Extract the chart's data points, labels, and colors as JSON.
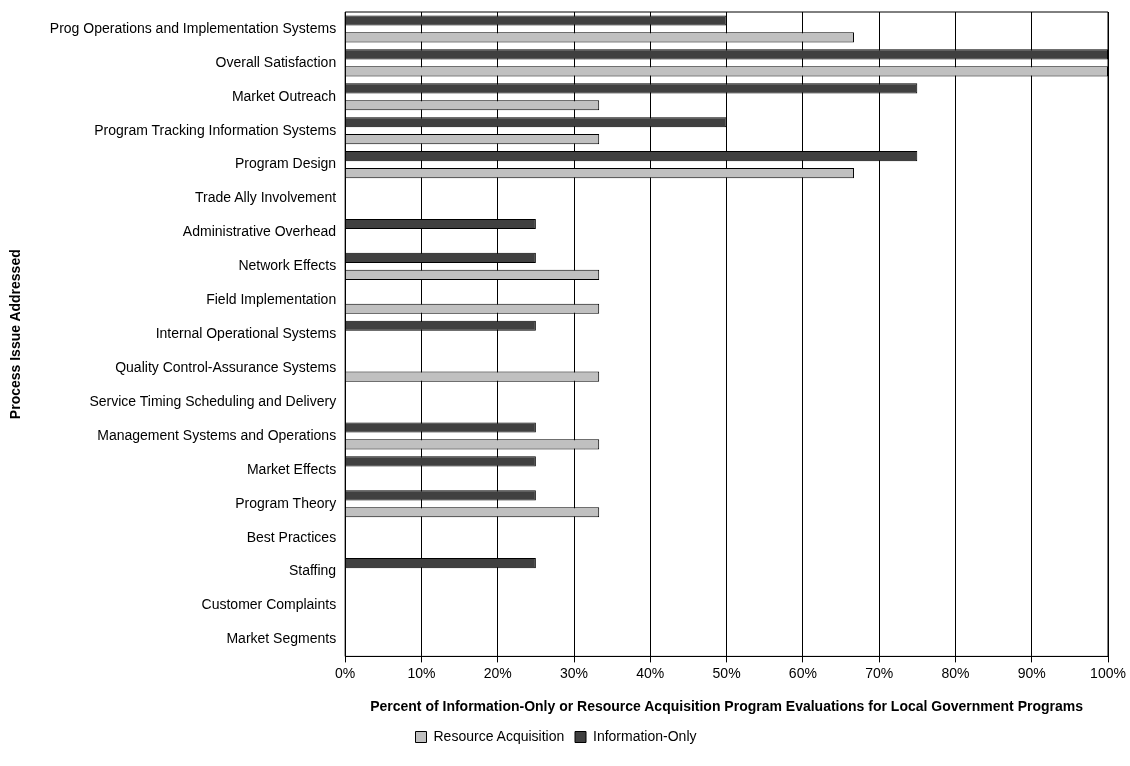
{
  "chart_data": {
    "type": "bar",
    "orientation": "horizontal",
    "xlabel": "Percent of Information-Only or Resource Acquisition Program Evaluations for Local Government Programs",
    "ylabel": "Process Issue Addressed",
    "categories": [
      "Prog Operations and Implementation Systems",
      "Overall Satisfaction",
      "Market Outreach",
      "Program Tracking Information Systems",
      "Program Design",
      "Trade Ally Involvement",
      "Administrative Overhead",
      "Network Effects",
      "Field Implementation",
      "Internal Operational Systems",
      "Quality Control-Assurance Systems",
      "Service Timing Scheduling and Delivery",
      "Management Systems and Operations",
      "Market Effects",
      "Program Theory",
      "Best Practices",
      "Staffing",
      "Customer Complaints",
      "Market Segments"
    ],
    "series": [
      {
        "name": "Resource Acquisition",
        "color": "#c0c0c0",
        "values": [
          66.7,
          100,
          33.3,
          33.3,
          66.7,
          0,
          0,
          33.3,
          33.3,
          0,
          33.3,
          0,
          33.3,
          0,
          33.3,
          0,
          0,
          0,
          0
        ]
      },
      {
        "name": "Information-Only",
        "color": "#404040",
        "values": [
          50,
          100,
          75,
          50,
          75,
          0,
          25,
          25,
          0,
          25,
          0,
          0,
          25,
          25,
          25,
          0,
          25,
          0,
          0
        ]
      }
    ],
    "xlim": [
      0,
      100
    ],
    "xticks": [
      {
        "value": 0,
        "label": "0%"
      },
      {
        "value": 10,
        "label": "10%"
      },
      {
        "value": 20,
        "label": "20%"
      },
      {
        "value": 30,
        "label": "30%"
      },
      {
        "value": 40,
        "label": "40%"
      },
      {
        "value": 50,
        "label": "50%"
      },
      {
        "value": 60,
        "label": "60%"
      },
      {
        "value": 70,
        "label": "70%"
      },
      {
        "value": 80,
        "label": "80%"
      },
      {
        "value": 90,
        "label": "90%"
      },
      {
        "value": 100,
        "label": "100%"
      }
    ],
    "grid": "x",
    "legend": "bottom"
  }
}
